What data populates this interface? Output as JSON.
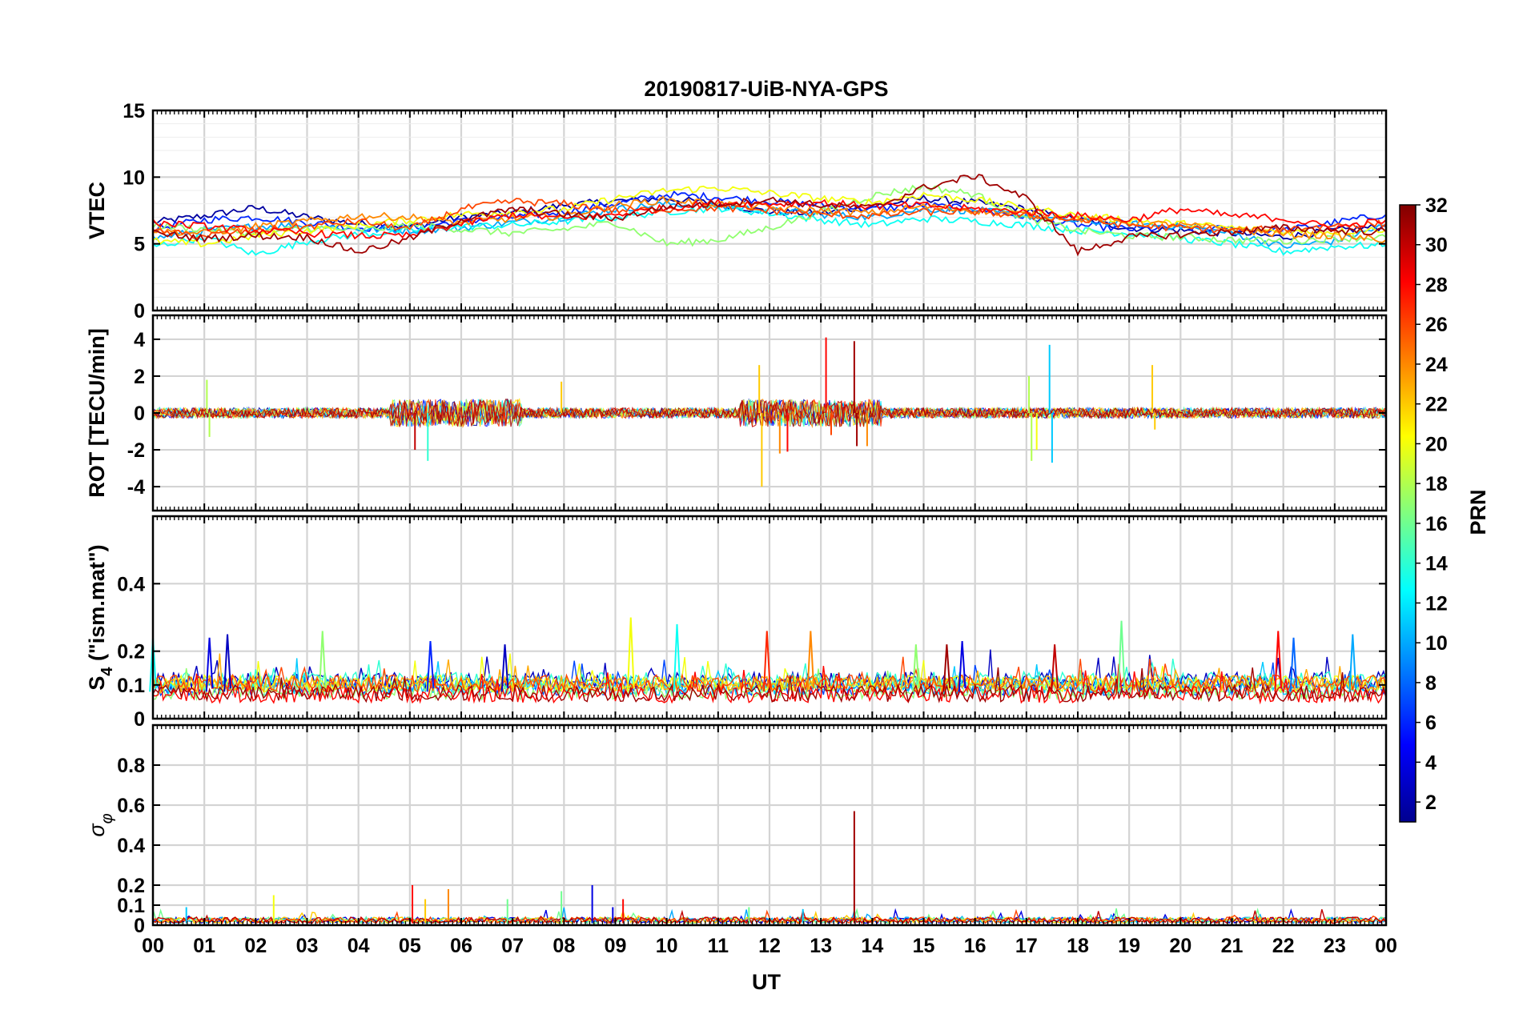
{
  "chart_data": {
    "type": "line",
    "title": "20190817-UiB-NYA-GPS",
    "xlabel": "UT",
    "x_tick_labels": [
      "00",
      "01",
      "02",
      "03",
      "04",
      "05",
      "06",
      "07",
      "08",
      "09",
      "10",
      "11",
      "12",
      "13",
      "14",
      "15",
      "16",
      "17",
      "18",
      "19",
      "20",
      "21",
      "22",
      "23",
      "00"
    ],
    "xlim": [
      0,
      24
    ],
    "grid": true,
    "colorbar": {
      "label": "PRN",
      "range": [
        1,
        32
      ],
      "ticks": [
        "32",
        "30",
        "28",
        "26",
        "24",
        "22",
        "20",
        "18",
        "16",
        "14",
        "12",
        "10",
        "8",
        "6",
        "4",
        "2"
      ],
      "tick_values": [
        32,
        30,
        28,
        26,
        24,
        22,
        20,
        18,
        16,
        14,
        12,
        10,
        8,
        6,
        4,
        2
      ],
      "colormap": "jet",
      "placement": "right"
    },
    "panels": [
      {
        "id": "vtec",
        "ylabel": "VTEC",
        "ylim": [
          0,
          15
        ],
        "yticks": [
          0,
          5,
          10,
          15
        ],
        "ytick_labels": [
          "0",
          "5",
          "10",
          "15"
        ],
        "minor_grid": true,
        "series": [
          {
            "prn": 2,
            "x": [
              0,
              1,
              2,
              3,
              4,
              5,
              6,
              7,
              8,
              9,
              10,
              11,
              12,
              13,
              14,
              15,
              16,
              17,
              18,
              19,
              20,
              21,
              22,
              23,
              24
            ],
            "y": [
              6.6,
              7.1,
              7.7,
              7.0,
              6.5,
              6.3,
              7.0,
              7.3,
              7.9,
              8.2,
              8.4,
              8.0,
              7.4,
              7.3,
              7.8,
              8.4,
              8.1,
              7.6,
              6.8,
              6.2,
              6.0,
              5.8,
              5.5,
              6.0,
              6.3
            ]
          },
          {
            "prn": 6,
            "x": [
              0,
              1,
              2,
              3,
              4,
              5,
              6,
              7,
              8,
              9,
              10,
              11,
              12,
              13,
              14,
              15,
              16,
              17,
              18,
              19,
              20,
              21,
              22,
              23,
              24
            ],
            "y": [
              6.1,
              6.8,
              7.0,
              6.6,
              6.2,
              6.2,
              6.7,
              7.0,
              7.4,
              8.0,
              8.7,
              8.5,
              8.2,
              7.9,
              7.6,
              7.9,
              7.6,
              7.0,
              6.4,
              6.1,
              6.2,
              6.1,
              6.0,
              6.6,
              7.2
            ]
          },
          {
            "prn": 10,
            "x": [
              0,
              1,
              2,
              3,
              4,
              5,
              6,
              7,
              8,
              9,
              10,
              11,
              12,
              13,
              14,
              15,
              16,
              17,
              18,
              19,
              20,
              21,
              22,
              23,
              24
            ],
            "y": [
              5.4,
              6.0,
              6.3,
              6.4,
              6.1,
              6.0,
              6.2,
              6.6,
              7.0,
              7.6,
              8.0,
              7.8,
              7.5,
              7.2,
              7.0,
              7.6,
              7.5,
              7.1,
              6.7,
              6.5,
              6.3,
              5.8,
              4.8,
              5.2,
              6.4
            ]
          },
          {
            "prn": 13,
            "x": [
              0,
              1,
              2,
              3,
              4,
              5,
              6,
              7,
              8,
              9,
              10,
              11,
              12,
              13,
              14,
              15,
              16,
              17,
              18,
              19,
              20,
              21,
              22,
              23,
              24
            ],
            "y": [
              4.8,
              5.5,
              4.2,
              5.2,
              5.7,
              6.0,
              6.3,
              6.4,
              6.7,
              7.0,
              7.4,
              7.7,
              7.3,
              6.8,
              6.4,
              6.9,
              6.7,
              6.4,
              6.0,
              5.8,
              5.4,
              5.0,
              4.4,
              4.8,
              4.9
            ]
          },
          {
            "prn": 17,
            "x": [
              0,
              1,
              2,
              3,
              4,
              5,
              6,
              7,
              8,
              9,
              10,
              11,
              12,
              13,
              14,
              15,
              16,
              17,
              18,
              19,
              20,
              21,
              22,
              23,
              24
            ],
            "y": [
              6.4,
              6.1,
              5.8,
              6.2,
              6.0,
              6.4,
              6.1,
              5.8,
              6.1,
              6.6,
              5.0,
              5.3,
              6.2,
              7.4,
              8.6,
              9.3,
              8.7,
              6.9,
              6.0,
              5.6,
              5.5,
              5.3,
              5.2,
              5.4,
              5.5
            ]
          },
          {
            "prn": 20,
            "x": [
              0,
              1,
              2,
              3,
              4,
              5,
              6,
              7,
              8,
              9,
              10,
              11,
              12,
              13,
              14,
              15,
              16,
              17,
              18,
              19,
              20,
              21,
              22,
              23,
              24
            ],
            "y": [
              5.2,
              5.0,
              5.6,
              6.0,
              6.4,
              6.8,
              7.2,
              7.4,
              7.6,
              8.4,
              9.0,
              9.2,
              8.8,
              8.4,
              8.1,
              8.7,
              8.3,
              7.7,
              7.1,
              6.8,
              6.5,
              6.2,
              5.9,
              5.9,
              6.1
            ]
          },
          {
            "prn": 24,
            "x": [
              0,
              1,
              2,
              3,
              4,
              5,
              6,
              7,
              8,
              9,
              10,
              11,
              12,
              13,
              14,
              15,
              16,
              17,
              18,
              19,
              20,
              21,
              22,
              23,
              24
            ],
            "y": [
              6.0,
              5.8,
              6.3,
              6.7,
              7.1,
              7.0,
              6.6,
              6.9,
              7.1,
              7.9,
              8.3,
              8.0,
              7.7,
              7.5,
              7.3,
              7.8,
              7.5,
              7.2,
              6.9,
              6.6,
              6.4,
              6.1,
              5.7,
              5.6,
              5.3
            ]
          },
          {
            "prn": 26,
            "x": [
              0,
              1,
              2,
              3,
              4,
              5,
              6,
              7,
              8,
              9,
              10,
              11,
              12,
              13,
              14,
              15,
              16,
              17,
              18,
              19,
              20,
              21,
              22,
              23,
              24
            ],
            "y": [
              5.9,
              5.6,
              6.0,
              6.3,
              6.7,
              6.1,
              7.6,
              8.2,
              8.0,
              7.5,
              7.6,
              7.7,
              7.5,
              7.2,
              7.1,
              7.4,
              7.4,
              7.1,
              6.8,
              6.4,
              6.2,
              6.0,
              6.1,
              6.4,
              6.5
            ]
          },
          {
            "prn": 28,
            "x": [
              0,
              1,
              2,
              3,
              4,
              5,
              6,
              7,
              8,
              9,
              10,
              11,
              12,
              13,
              14,
              15,
              16,
              17,
              18,
              19,
              20,
              21,
              22,
              23,
              24
            ],
            "y": [
              6.6,
              6.3,
              6.0,
              5.8,
              5.6,
              5.6,
              6.5,
              7.2,
              6.9,
              7.2,
              7.7,
              8.1,
              8.0,
              8.1,
              7.8,
              7.9,
              7.6,
              7.4,
              7.1,
              6.8,
              7.6,
              7.1,
              6.9,
              6.2,
              6.8
            ]
          },
          {
            "prn": 31,
            "x": [
              0,
              1,
              2,
              3,
              4,
              5,
              6,
              7,
              8,
              9,
              10,
              11,
              12,
              13,
              14,
              15,
              16,
              17,
              18,
              19,
              20,
              21,
              22,
              23,
              24
            ],
            "y": [
              5.8,
              5.4,
              5.6,
              5.5,
              4.4,
              5.4,
              6.8,
              7.6,
              7.2,
              6.9,
              7.8,
              8.0,
              8.3,
              7.9,
              7.7,
              9.2,
              10.1,
              8.4,
              4.4,
              5.5,
              5.7,
              5.9,
              6.2,
              6.0,
              5.9
            ]
          }
        ]
      },
      {
        "id": "rot",
        "ylabel": "ROT [TECU/min]",
        "ylim": [
          -5.3,
          5.3
        ],
        "yticks": [
          -4,
          -2,
          0,
          2,
          4
        ],
        "ytick_labels": [
          "-4",
          "-2",
          "0",
          "2",
          "4"
        ],
        "spikes": [
          {
            "prn": 18,
            "x": 1.05,
            "y": 1.8
          },
          {
            "prn": 18,
            "x": 1.1,
            "y": -1.3
          },
          {
            "prn": 30,
            "x": 5.1,
            "y": -2.0
          },
          {
            "prn": 14,
            "x": 5.35,
            "y": -2.6
          },
          {
            "prn": 22,
            "x": 7.95,
            "y": 1.7
          },
          {
            "prn": 22,
            "x": 11.8,
            "y": 2.6
          },
          {
            "prn": 22,
            "x": 11.85,
            "y": -4.0
          },
          {
            "prn": 24,
            "x": 12.2,
            "y": -2.2
          },
          {
            "prn": 28,
            "x": 12.35,
            "y": -2.1
          },
          {
            "prn": 28,
            "x": 13.1,
            "y": 4.1
          },
          {
            "prn": 26,
            "x": 13.2,
            "y": -1.2
          },
          {
            "prn": 31,
            "x": 13.65,
            "y": 3.9
          },
          {
            "prn": 31,
            "x": 13.7,
            "y": -1.8
          },
          {
            "prn": 24,
            "x": 13.9,
            "y": -1.8
          },
          {
            "prn": 18,
            "x": 17.05,
            "y": 2.0
          },
          {
            "prn": 18,
            "x": 17.1,
            "y": -2.6
          },
          {
            "prn": 20,
            "x": 17.2,
            "y": -2.0
          },
          {
            "prn": 11,
            "x": 17.45,
            "y": 3.7
          },
          {
            "prn": 11,
            "x": 17.5,
            "y": -2.7
          },
          {
            "prn": 22,
            "x": 19.45,
            "y": 2.6
          },
          {
            "prn": 22,
            "x": 19.5,
            "y": -0.9
          }
        ]
      },
      {
        "id": "s4",
        "ylabel": "S4 (\"ism.mat\")",
        "ylabel_main": "S",
        "ylabel_sub": "4",
        "ylabel_rest": " (\"ism.mat\")",
        "ylim": [
          0,
          0.6
        ],
        "yticks": [
          0,
          0.1,
          0.2,
          0.4
        ],
        "ytick_labels": [
          "0",
          "0.1",
          "0.2",
          "0.4"
        ],
        "peaks": [
          {
            "prn": 13,
            "x": 0.0,
            "y": 0.24
          },
          {
            "prn": 4,
            "x": 1.1,
            "y": 0.24
          },
          {
            "prn": 3,
            "x": 1.45,
            "y": 0.25
          },
          {
            "prn": 17,
            "x": 3.3,
            "y": 0.26
          },
          {
            "prn": 6,
            "x": 5.4,
            "y": 0.23
          },
          {
            "prn": 3,
            "x": 6.85,
            "y": 0.22
          },
          {
            "prn": 20,
            "x": 9.3,
            "y": 0.3
          },
          {
            "prn": 13,
            "x": 10.2,
            "y": 0.28
          },
          {
            "prn": 27,
            "x": 11.95,
            "y": 0.26
          },
          {
            "prn": 24,
            "x": 12.8,
            "y": 0.26
          },
          {
            "prn": 17,
            "x": 14.85,
            "y": 0.22
          },
          {
            "prn": 31,
            "x": 15.45,
            "y": 0.22
          },
          {
            "prn": 4,
            "x": 15.75,
            "y": 0.23
          },
          {
            "prn": 30,
            "x": 17.55,
            "y": 0.22
          },
          {
            "prn": 16,
            "x": 18.85,
            "y": 0.29
          },
          {
            "prn": 28,
            "x": 21.9,
            "y": 0.26
          },
          {
            "prn": 8,
            "x": 22.2,
            "y": 0.24
          },
          {
            "prn": 10,
            "x": 23.35,
            "y": 0.25
          }
        ]
      },
      {
        "id": "sigma_phi",
        "ylabel": "σφ",
        "ylabel_main": "σ",
        "ylabel_sub": "φ",
        "ylim": [
          0,
          1.0
        ],
        "yticks": [
          0,
          0.1,
          0.2,
          0.4,
          0.6,
          0.8
        ],
        "ytick_labels": [
          "0",
          "0.1",
          "0.2",
          "0.4",
          "0.6",
          "0.8"
        ],
        "peaks": [
          {
            "prn": 11,
            "x": 0.65,
            "y": 0.09
          },
          {
            "prn": 20,
            "x": 2.35,
            "y": 0.15
          },
          {
            "prn": 28,
            "x": 5.05,
            "y": 0.2
          },
          {
            "prn": 22,
            "x": 5.3,
            "y": 0.13
          },
          {
            "prn": 24,
            "x": 5.75,
            "y": 0.18
          },
          {
            "prn": 16,
            "x": 6.9,
            "y": 0.13
          },
          {
            "prn": 16,
            "x": 7.95,
            "y": 0.17
          },
          {
            "prn": 4,
            "x": 8.55,
            "y": 0.2
          },
          {
            "prn": 4,
            "x": 8.95,
            "y": 0.09
          },
          {
            "prn": 28,
            "x": 9.15,
            "y": 0.13
          },
          {
            "prn": 16,
            "x": 11.6,
            "y": 0.09
          },
          {
            "prn": 31,
            "x": 13.65,
            "y": 0.57
          },
          {
            "prn": 11,
            "x": 12.65,
            "y": 0.08
          }
        ]
      }
    ]
  }
}
